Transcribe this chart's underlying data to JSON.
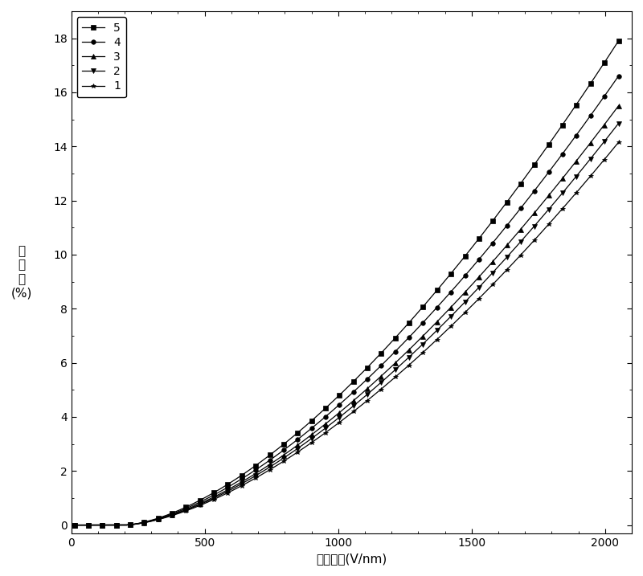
{
  "title": "",
  "xlabel": "电场强度(V/nm)",
  "ylabel_text": "调\n谐\n率\n(%)",
  "xlim": [
    0,
    2100
  ],
  "ylim": [
    -0.3,
    19
  ],
  "xticks": [
    0,
    500,
    1000,
    1500,
    2000
  ],
  "yticks": [
    0,
    2,
    4,
    6,
    8,
    10,
    12,
    14,
    16,
    18
  ],
  "series": [
    {
      "label": "5",
      "marker": "s",
      "end_value": 17.9
    },
    {
      "label": "4",
      "marker": "o",
      "end_value": 16.6
    },
    {
      "label": "3",
      "marker": "^",
      "end_value": 15.5
    },
    {
      "label": "2",
      "marker": "v",
      "end_value": 14.85
    },
    {
      "label": "1",
      "marker": "*",
      "end_value": 14.15
    }
  ],
  "line_color": "#000000",
  "background_color": "#ffffff",
  "legend_loc": "upper left",
  "figsize": [
    8.0,
    7.17
  ],
  "dpi": 100,
  "marker_size": 4,
  "n_markers": 40,
  "linewidth": 0.9
}
